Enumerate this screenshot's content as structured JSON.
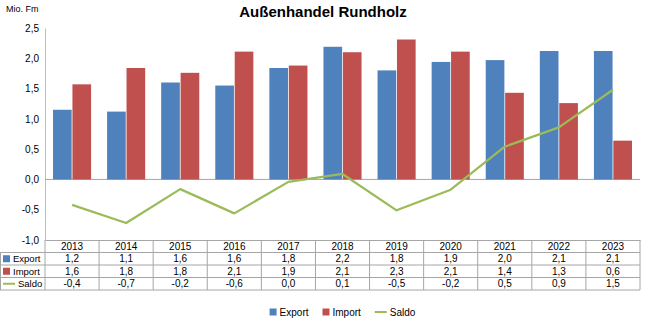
{
  "chart_data": {
    "type": "bar",
    "title": "Außenhandel Rundholz",
    "ylabel": "Mio. Fm",
    "categories": [
      "2013",
      "2014",
      "2015",
      "2016",
      "2017",
      "2018",
      "2019",
      "2020",
      "2021",
      "2022",
      "2023"
    ],
    "ylim": [
      -1,
      2.5
    ],
    "yticks": [
      {
        "value": -1,
        "label": "-1,0"
      },
      {
        "value": -0.5,
        "label": "-0,5"
      },
      {
        "value": 0,
        "label": "0,0"
      },
      {
        "value": 0.5,
        "label": "0,5"
      },
      {
        "value": 1,
        "label": "1,0"
      },
      {
        "value": 1.5,
        "label": "1,5"
      },
      {
        "value": 2,
        "label": "2,0"
      },
      {
        "value": 2.5,
        "label": "2,5"
      }
    ],
    "grid": false,
    "legend": "bottom",
    "series": [
      {
        "name": "Export",
        "type": "bar",
        "color": "#4F81BD",
        "values": [
          1.15,
          1.12,
          1.6,
          1.55,
          1.84,
          2.19,
          1.8,
          1.94,
          1.97,
          2.12,
          2.12
        ],
        "value_labels": [
          "1,2",
          "1,1",
          "1,6",
          "1,6",
          "1,8",
          "2,2",
          "1,8",
          "1,9",
          "2,0",
          "2,1",
          "2,1"
        ]
      },
      {
        "name": "Import",
        "type": "bar",
        "color": "#C0504D",
        "values": [
          1.57,
          1.84,
          1.76,
          2.11,
          1.88,
          2.1,
          2.31,
          2.11,
          1.43,
          1.26,
          0.64
        ],
        "value_labels": [
          "1,6",
          "1,8",
          "1,8",
          "2,1",
          "1,9",
          "2,1",
          "2,3",
          "2,1",
          "1,4",
          "1,3",
          "0,6"
        ]
      },
      {
        "name": "Saldo",
        "type": "line",
        "color": "#9BBB59",
        "values": [
          -0.42,
          -0.72,
          -0.16,
          -0.56,
          -0.04,
          0.09,
          -0.51,
          -0.17,
          0.54,
          0.86,
          1.48
        ],
        "value_labels": [
          "-0,4",
          "-0,7",
          "-0,2",
          "-0,6",
          "0,0",
          "0,1",
          "-0,5",
          "-0,2",
          "0,5",
          "0,9",
          "1,5"
        ]
      }
    ]
  }
}
